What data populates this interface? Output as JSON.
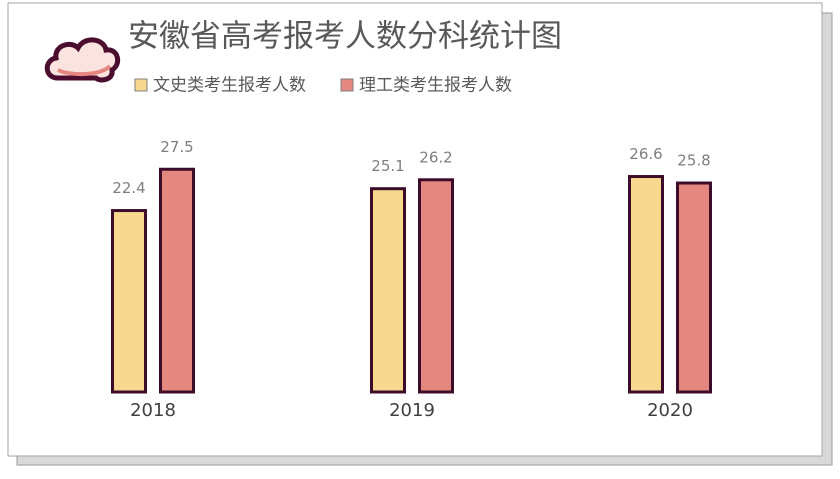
{
  "chart_data": {
    "type": "bar",
    "title": "安徽省高考报考人数分科统计图",
    "categories": [
      "2018",
      "2019",
      "2020"
    ],
    "series": [
      {
        "name": "文史类考生报考人数",
        "color": "#f6d98e",
        "values": [
          22.4,
          25.1,
          26.6
        ]
      },
      {
        "name": "理工类考生报考人数",
        "color": "#e4877e",
        "values": [
          27.5,
          26.2,
          25.8
        ]
      }
    ]
  }
}
